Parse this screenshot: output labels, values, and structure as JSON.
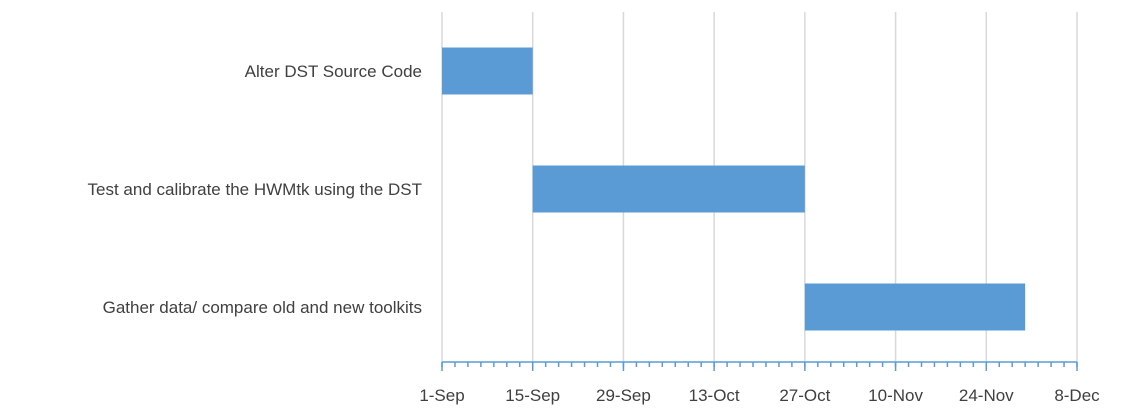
{
  "chart_data": {
    "type": "bar",
    "orientation": "horizontal",
    "title": "",
    "xlabel": "",
    "ylabel": "",
    "x_axis": {
      "type": "date",
      "range": [
        "2023-09-01",
        "2023-12-08"
      ],
      "major_ticks": [
        "2023-09-01",
        "2023-09-15",
        "2023-09-29",
        "2023-10-13",
        "2023-10-27",
        "2023-11-10",
        "2023-11-24",
        "2023-12-08"
      ],
      "tick_labels": [
        "1-Sep",
        "15-Sep",
        "29-Sep",
        "13-Oct",
        "27-Oct",
        "10-Nov",
        "24-Nov",
        "8-Dec"
      ],
      "minor_tick_interval_days": 2,
      "gridlines": true
    },
    "categories": [
      "Alter DST Source Code",
      "Test and calibrate the HWMtk using the DST",
      "Gather data/ compare old and new toolkits"
    ],
    "series": [
      {
        "color": "#5b9bd5",
        "start": [
          "2023-09-01",
          "2023-09-15",
          "2023-10-27"
        ],
        "end": [
          "2023-09-15",
          "2023-10-27",
          "2023-11-30"
        ]
      }
    ],
    "legend": "none"
  },
  "colors": {
    "bar": "#5b9bd5",
    "axis": "#5b9bd5",
    "grid": "#d9d9d9",
    "text": "#404040"
  }
}
